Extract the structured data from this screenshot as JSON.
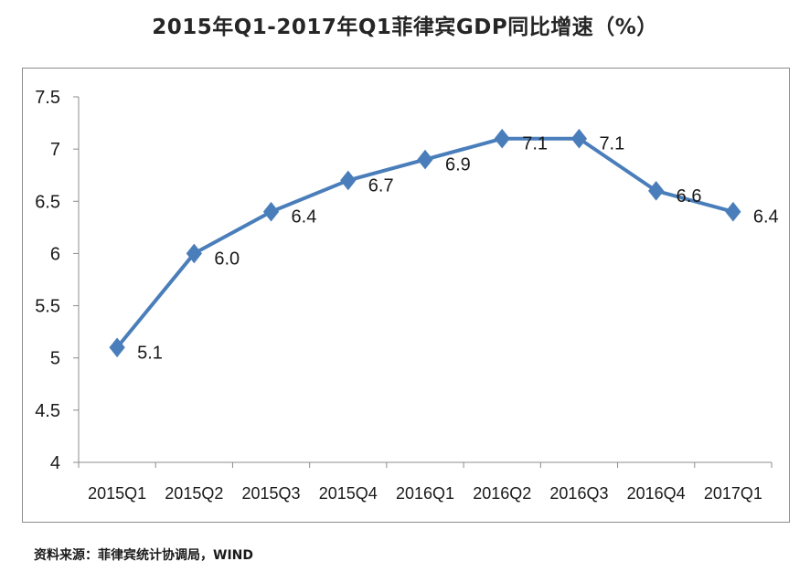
{
  "header": {
    "title": "2015年Q1-2017年Q1菲律宾GDP同比增速（%）"
  },
  "footer": {
    "source": "资料来源：菲律宾统计协调局，WIND"
  },
  "chart_data": {
    "type": "line",
    "title": "2015年Q1-2017年Q1菲律宾GDP同比增速（%）",
    "xlabel": "",
    "ylabel": "",
    "categories": [
      "2015Q1",
      "2015Q2",
      "2015Q3",
      "2015Q4",
      "2016Q1",
      "2016Q2",
      "2016Q3",
      "2016Q4",
      "2017Q1"
    ],
    "series": [
      {
        "values": [
          5.1,
          6.0,
          6.4,
          6.7,
          6.9,
          7.1,
          7.1,
          6.6,
          6.4
        ],
        "labels": [
          "5.1",
          "6.0",
          "6.4",
          "6.7",
          "6.9",
          "7.1",
          "7.1",
          "6.6",
          "6.4"
        ],
        "color": "#4a7ebb",
        "marker": "diamond"
      }
    ],
    "ylim": [
      4,
      7.5
    ],
    "yticks": [
      4,
      4.5,
      5,
      5.5,
      6,
      6.5,
      7,
      7.5
    ],
    "ytick_labels": [
      "4",
      "4.5",
      "5",
      "5.5",
      "6",
      "6.5",
      "7",
      "7.5"
    ],
    "grid": false,
    "legend": "none"
  }
}
